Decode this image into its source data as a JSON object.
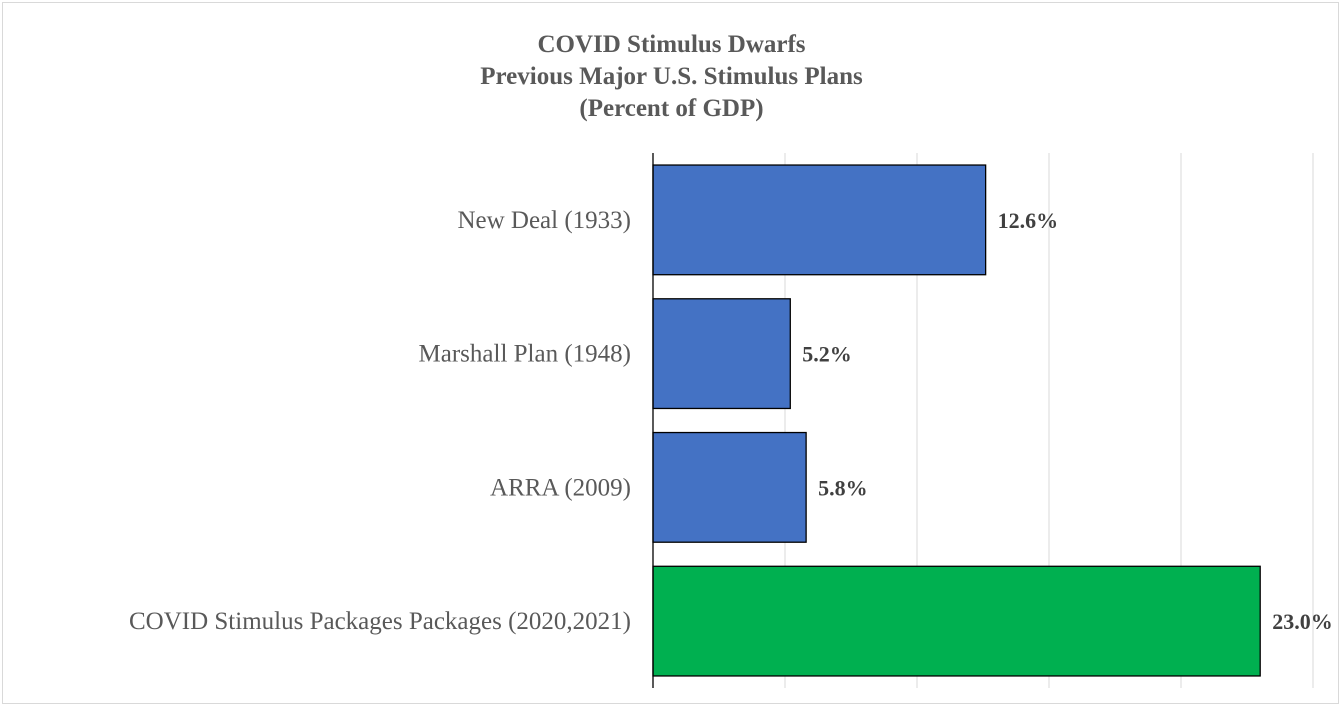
{
  "chart_data": {
    "type": "bar",
    "orientation": "horizontal",
    "title_lines": [
      "COVID Stimulus Dwarfs",
      "Previous Major U.S. Stimulus Plans",
      "(Percent of GDP)"
    ],
    "categories": [
      "New Deal (1933)",
      "Marshall Plan (1948)",
      "ARRA (2009)",
      "COVID Stimulus Packages Packages (2020,2021)"
    ],
    "values": [
      12.6,
      5.2,
      5.8,
      23.0
    ],
    "data_labels": [
      "12.6%",
      "5.2%",
      "5.8%",
      "23.0%"
    ],
    "colors": [
      "#4472C4",
      "#4472C4",
      "#4472C4",
      "#00B050"
    ],
    "xlim": [
      0,
      25
    ],
    "gridlines": true,
    "gridline_step": 5,
    "xlabel": "",
    "ylabel": ""
  }
}
